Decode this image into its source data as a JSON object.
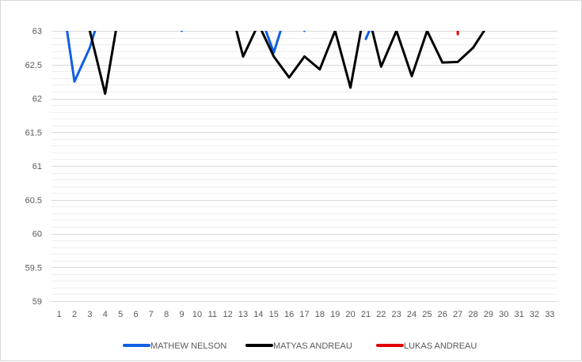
{
  "chart_data": {
    "type": "line",
    "title": "",
    "xlabel": "",
    "ylabel": "",
    "categories": [
      "1",
      "2",
      "3",
      "4",
      "5",
      "6",
      "7",
      "8",
      "9",
      "10",
      "11",
      "12",
      "13",
      "14",
      "15",
      "16",
      "17",
      "18",
      "19",
      "20",
      "21",
      "22",
      "23",
      "24",
      "25",
      "26",
      "27",
      "28",
      "29",
      "30",
      "31",
      "32",
      "33"
    ],
    "ylim": [
      59,
      63
    ],
    "yticks": [
      "59",
      "59.5",
      "60",
      "60.5",
      "61",
      "61.5",
      "62",
      "62.5",
      "63"
    ],
    "grid": true,
    "legend_position": "bottom",
    "series": [
      {
        "name": "MATHEW NELSON",
        "color": "#0f5fe6",
        "values": [
          63.8,
          62.25,
          62.75,
          63.5,
          null,
          null,
          null,
          null,
          63.0,
          null,
          null,
          null,
          null,
          63.3,
          62.68,
          63.4,
          63.0,
          null,
          null,
          null,
          62.88,
          63.4,
          null,
          null,
          null,
          null,
          null,
          null,
          null,
          null,
          null,
          null,
          null
        ]
      },
      {
        "name": "MATYAS ANDREAU",
        "color": "#000000",
        "values": [
          null,
          null,
          63.0,
          62.07,
          63.4,
          null,
          null,
          null,
          null,
          null,
          null,
          63.5,
          62.62,
          63.1,
          62.62,
          62.31,
          62.62,
          62.43,
          63.0,
          62.16,
          63.4,
          62.47,
          63.0,
          62.33,
          63.0,
          62.53,
          62.54,
          62.75,
          63.1,
          null,
          null,
          null,
          null
        ]
      },
      {
        "name": "LUKAS ANDREAU",
        "color": "#e00000",
        "values": [
          null,
          null,
          null,
          null,
          null,
          null,
          null,
          null,
          null,
          null,
          null,
          null,
          null,
          null,
          null,
          null,
          null,
          null,
          null,
          null,
          null,
          null,
          null,
          null,
          null,
          null,
          62.95,
          null,
          null,
          null,
          null,
          null,
          null
        ]
      }
    ]
  }
}
